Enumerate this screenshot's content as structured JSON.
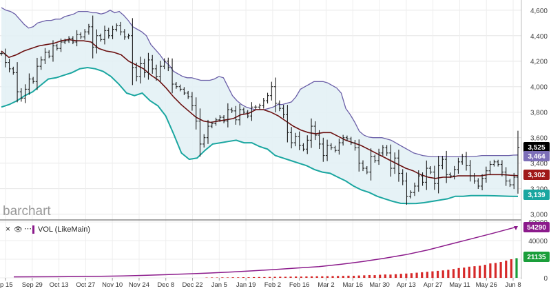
{
  "watermark": "barchart",
  "volume_panel": {
    "title": "VOL (LikeMain)",
    "close_label": "×",
    "eye_label": "👁",
    "more_label": "⋯"
  },
  "badges": {
    "last_price": "3,525",
    "bb_upper": "3,464",
    "bb_middle": "3,302",
    "bb_lower": "3,139",
    "vol_ma": "54290",
    "volume": "21135"
  },
  "colors": {
    "price_bar": "#1a1a1a",
    "bb_upper": "#6b5fa8",
    "bb_lower": "#1aa6a0",
    "bb_middle": "#6b0f0f",
    "bb_fill": "#e2f0f5",
    "volume_bar": "#d62828",
    "volume_bar_last": "#1a9e3a",
    "vol_ma_line": "#8b1a8b",
    "last_price_badge": "#000000",
    "bb_upper_badge": "#7d6fb8",
    "bb_middle_badge": "#a01818",
    "bb_lower_badge": "#1aa6a0",
    "vol_ma_badge": "#8b1a8b",
    "volume_badge": "#1a9e3a"
  },
  "chart_data": {
    "type": "ohlc",
    "indicator": "Bollinger Bands",
    "price_axis": {
      "ticks": [
        "3,000",
        "3,200",
        "3,400",
        "3,600",
        "3,800",
        "4,000",
        "4,200",
        "4,400",
        "4,600"
      ],
      "ylim": [
        2960,
        4680
      ]
    },
    "volume_axis": {
      "ticks": [
        "0",
        "20000",
        "40000",
        "60000"
      ],
      "ylim": [
        0,
        60000
      ]
    },
    "x_ticks": [
      "p 15",
      "Sep 29",
      "Oct 13",
      "Oct 27",
      "Nov 10",
      "Nov 24",
      "Dec 8",
      "Dec 22",
      "Jan 5",
      "Jan 19",
      "Feb 2",
      "Feb 16",
      "Mar 2",
      "Mar 16",
      "Mar 30",
      "Apr 13",
      "Apr 27",
      "May 11",
      "May 26",
      "Jun 8"
    ],
    "closes": [
      4260,
      4190,
      4140,
      4110,
      3960,
      3910,
      3980,
      4060,
      4040,
      4160,
      4210,
      4270,
      4240,
      4320,
      4300,
      4350,
      4360,
      4380,
      4350,
      4410,
      4390,
      4430,
      4470,
      4310,
      4400,
      4370,
      4440,
      4400,
      4450,
      4480,
      4430,
      4390,
      4400,
      4150,
      4080,
      4180,
      4110,
      4210,
      4140,
      4080,
      4160,
      4200,
      4150,
      4020,
      4000,
      3980,
      3950,
      3920,
      3850,
      3730,
      3550,
      3600,
      3690,
      3710,
      3740,
      3760,
      3730,
      3820,
      3810,
      3740,
      3820,
      3800,
      3770,
      3840,
      3840,
      3850,
      3890,
      3930,
      4000,
      3870,
      3830,
      3780,
      3640,
      3560,
      3610,
      3540,
      3510,
      3580,
      3690,
      3620,
      3550,
      3460,
      3540,
      3520,
      3500,
      3560,
      3600,
      3590,
      3560,
      3520,
      3400,
      3360,
      3330,
      3450,
      3420,
      3480,
      3520,
      3480,
      3360,
      3440,
      3320,
      3260,
      3140,
      3170,
      3220,
      3300,
      3250,
      3360,
      3330,
      3240,
      3380,
      3430,
      3310,
      3300,
      3350,
      3410,
      3450,
      3380,
      3300,
      3260,
      3220,
      3280,
      3340,
      3390,
      3410,
      3390,
      3330,
      3260,
      3230,
      3290,
      3525
    ],
    "bb_upper": [
      4620,
      4600,
      4590,
      4570,
      4530,
      4490,
      4460,
      4470,
      4500,
      4510,
      4520,
      4520,
      4530,
      4530,
      4550,
      4560,
      4570,
      4590,
      4590,
      4590,
      4580,
      4580,
      4570,
      4580,
      4600,
      4580,
      4590,
      4560,
      4520,
      4470,
      4450,
      4430,
      4400,
      4330,
      4290,
      4250,
      4200,
      4170,
      4120,
      4100,
      4080,
      4070,
      4070,
      4060,
      4050,
      4050,
      4050,
      4060,
      4080,
      4070,
      4000,
      3930,
      3890,
      3860,
      3840,
      3830,
      3820,
      3820,
      3820,
      3830,
      3840,
      3860,
      3860,
      3870,
      3880,
      3920,
      3980,
      4000,
      4020,
      4040,
      4040,
      4040,
      4030,
      4010,
      3990,
      3950,
      3830,
      3780,
      3720,
      3650,
      3620,
      3605,
      3600,
      3600,
      3600,
      3590,
      3580,
      3560,
      3540,
      3520,
      3500,
      3480,
      3470,
      3460,
      3455,
      3450,
      3450,
      3450,
      3450,
      3450,
      3450,
      3450,
      3450,
      3450,
      3452,
      3455,
      3460,
      3460,
      3460,
      3460,
      3460,
      3460,
      3460,
      3463,
      3464
    ],
    "bb_lower": [
      3840,
      3860,
      3890,
      3930,
      3960,
      4010,
      4060,
      4070,
      4090,
      4110,
      4140,
      4150,
      4140,
      4120,
      4080,
      4020,
      3950,
      3930,
      3950,
      3890,
      3850,
      3770,
      3630,
      3480,
      3430,
      3440,
      3500,
      3550,
      3560,
      3570,
      3580,
      3560,
      3560,
      3530,
      3510,
      3460,
      3440,
      3420,
      3400,
      3380,
      3350,
      3330,
      3320,
      3290,
      3260,
      3220,
      3190,
      3170,
      3140,
      3120,
      3100,
      3085,
      3083,
      3084,
      3090,
      3100,
      3110,
      3120,
      3140,
      3140,
      3145,
      3145,
      3145,
      3144,
      3142,
      3140,
      3139
    ],
    "bb_middle": [
      4280,
      4230,
      4250,
      4280,
      4300,
      4320,
      4330,
      4340,
      4360,
      4370,
      4360,
      4360,
      4350,
      4300,
      4280,
      4270,
      4250,
      4200,
      4170,
      4140,
      4090,
      4050,
      3990,
      3920,
      3860,
      3810,
      3760,
      3730,
      3720,
      3730,
      3740,
      3750,
      3780,
      3790,
      3820,
      3820,
      3800,
      3770,
      3730,
      3690,
      3660,
      3640,
      3630,
      3640,
      3640,
      3610,
      3580,
      3560,
      3540,
      3510,
      3480,
      3450,
      3420,
      3390,
      3360,
      3340,
      3310,
      3290,
      3280,
      3290,
      3290,
      3300,
      3300,
      3300,
      3300,
      3310,
      3310,
      3310,
      3305,
      3302
    ],
    "volume": [
      300,
      400,
      350,
      500,
      450,
      600,
      550,
      700,
      650,
      800,
      900,
      850,
      1000,
      1100,
      1200,
      1150,
      1300,
      1400,
      1350,
      1500,
      1600,
      1700,
      1650,
      1800,
      1900,
      2000,
      2100,
      2300,
      2200,
      2500,
      2700,
      3000,
      2900,
      3300,
      3600,
      3500,
      3900,
      4300,
      4600,
      5000,
      5500,
      6000,
      6500,
      7000,
      7500,
      8000,
      8600,
      9500,
      10500,
      11000,
      12000,
      12500,
      13000,
      14000,
      15500,
      16000,
      17000,
      18500,
      20000,
      21135
    ],
    "vol_ma": [
      1000,
      1100,
      1200,
      1400,
      1700,
      2100,
      2700,
      3400,
      4300,
      5200,
      6300,
      7600,
      9000,
      10500,
      12000,
      14500,
      17500,
      21000,
      25000,
      30000,
      36000,
      42000,
      48000,
      54290
    ]
  }
}
